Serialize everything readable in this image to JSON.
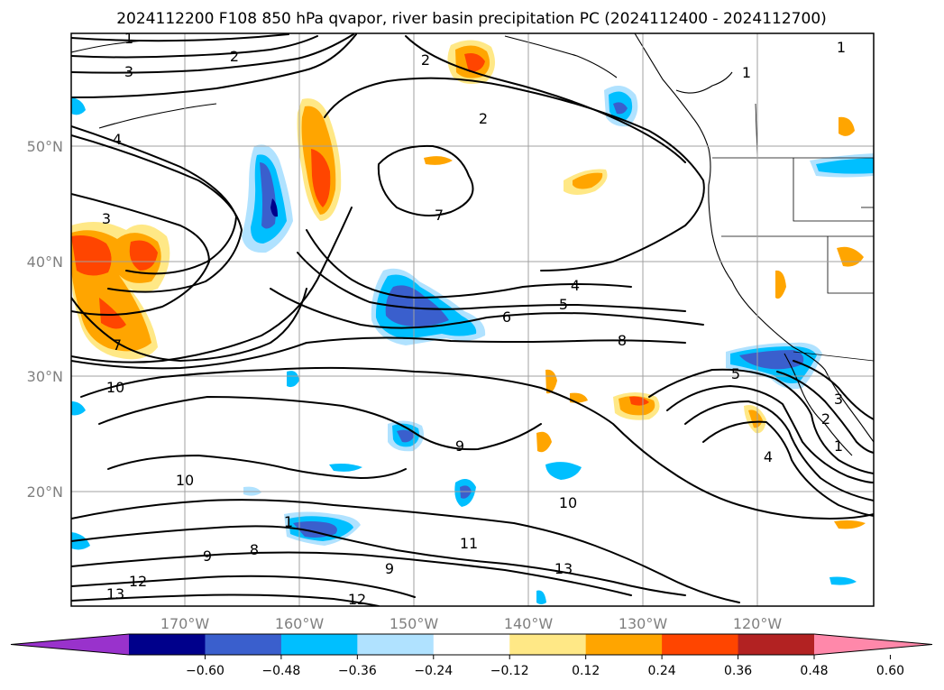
{
  "title": "2024112200 F108 850 hPa qvapor, river basin precipitation PC (2024112400 - 2024112700)",
  "map": {
    "lon_labels": [
      "170°W",
      "160°W",
      "150°W",
      "140°W",
      "130°W",
      "120°W"
    ],
    "lat_labels": [
      "50°N",
      "40°N",
      "30°N",
      "20°N"
    ],
    "land_color": "#ffffff",
    "grid_color": "#a0a0a0"
  },
  "contours": {
    "field": "850 hPa qvapor",
    "color": "#000000",
    "labels": [
      "1",
      "2",
      "3",
      "4",
      "2",
      "2",
      "7",
      "3",
      "4",
      "5",
      "6",
      "7",
      "8",
      "10",
      "5",
      "9",
      "10",
      "10",
      "1",
      "8",
      "9",
      "9",
      "11",
      "13",
      "12",
      "13",
      "12",
      "1",
      "2",
      "3",
      "4",
      "1",
      "1"
    ]
  },
  "colorbar": {
    "ticks": [
      "−0.60",
      "−0.48",
      "−0.36",
      "−0.24",
      "−0.12",
      "0.12",
      "0.24",
      "0.36",
      "0.48",
      "0.60"
    ],
    "colors": [
      "#9932cc",
      "#00008b",
      "#3a5fcd",
      "#00bfff",
      "#b0e2ff",
      "#ffffff",
      "#ffe886",
      "#ffa500",
      "#ff4500",
      "#b22222",
      "#ff88aa"
    ]
  }
}
